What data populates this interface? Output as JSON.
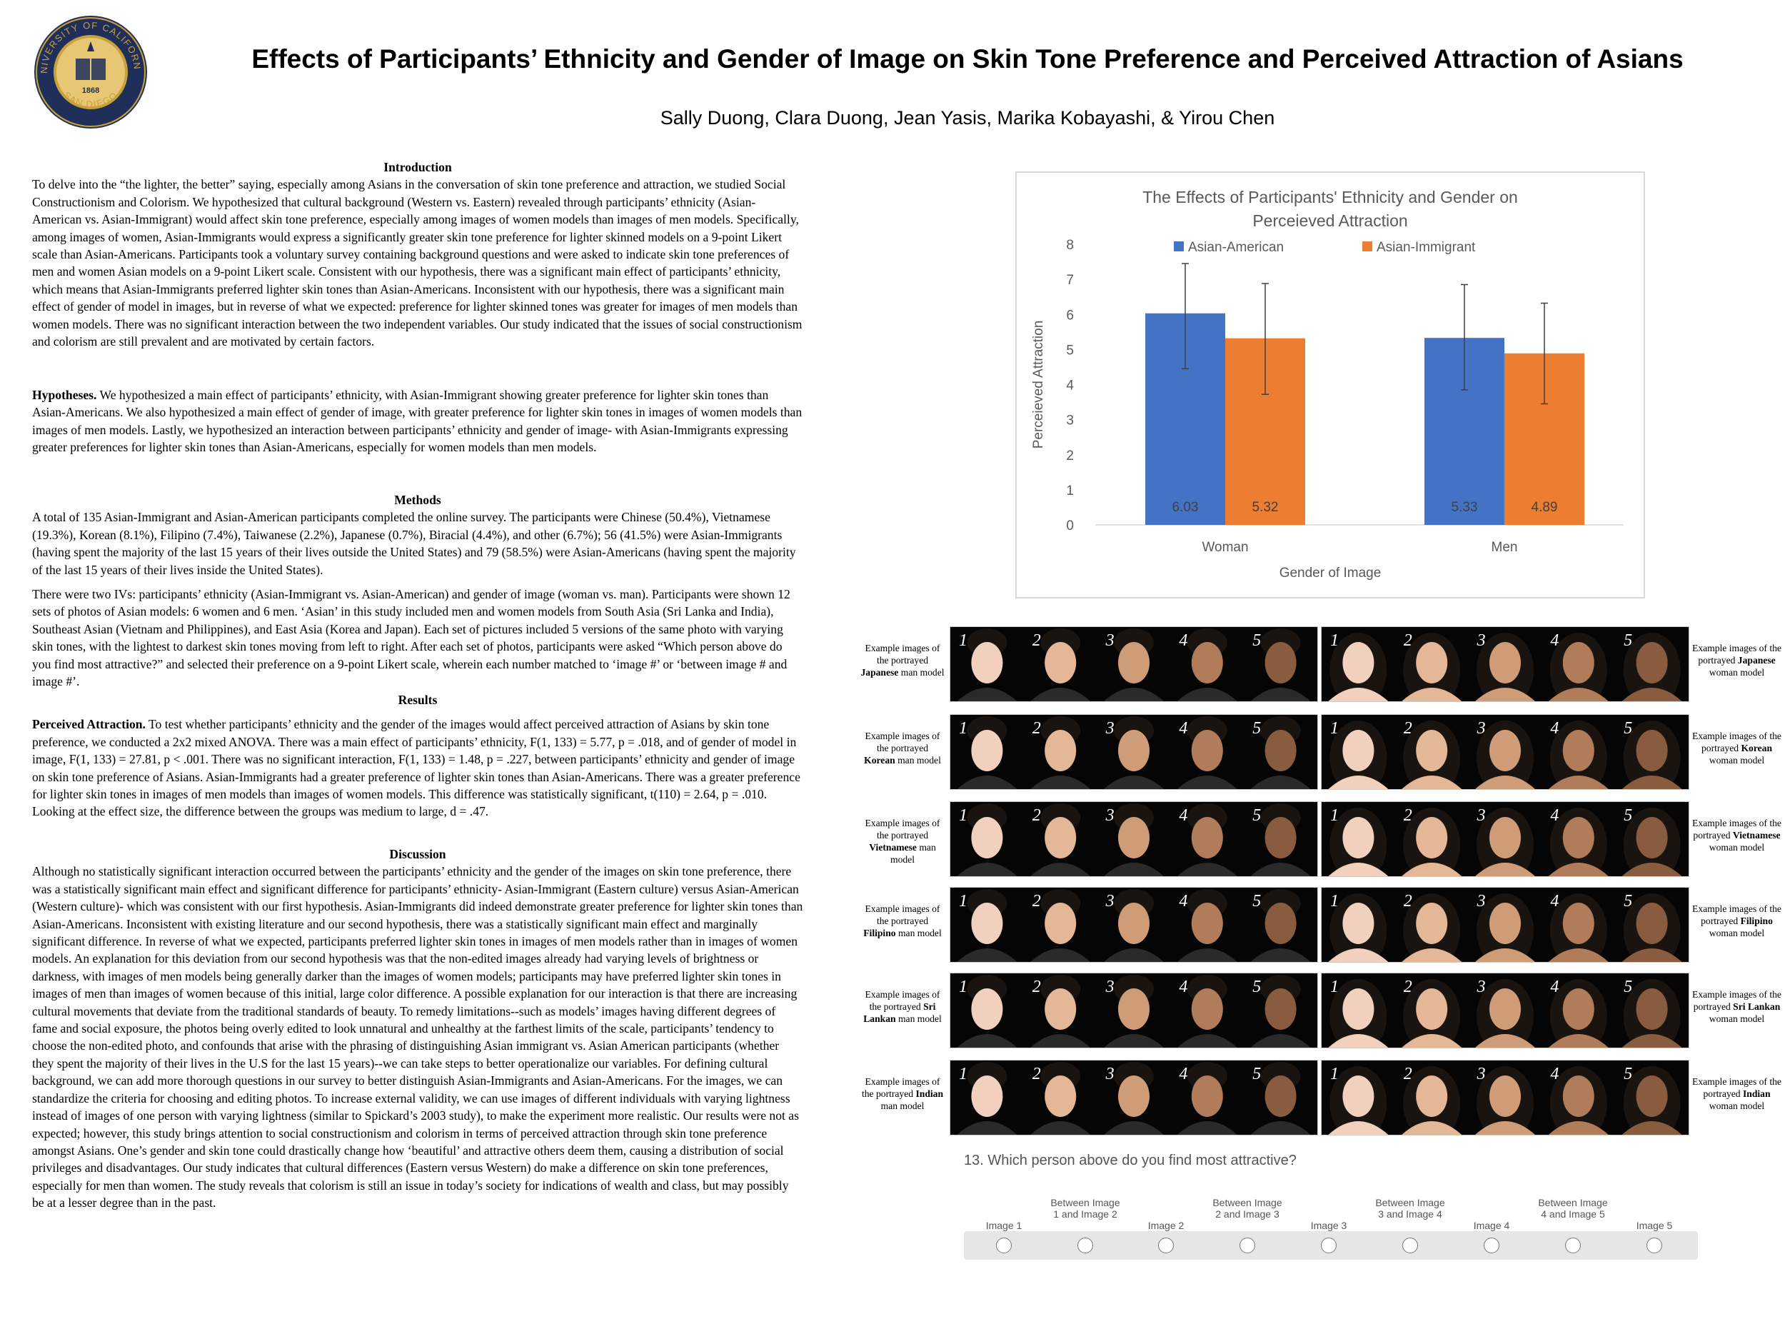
{
  "poster": {
    "title": "Effects of Participants’ Ethnicity and Gender of Image on Skin Tone Preference and Perceived Attraction of Asians",
    "authors": "Sally Duong, Clara Duong, Jean Yasis, Marika Kobayashi, & Yirou Chen",
    "seal": {
      "top_text": "UNIVERSITY OF CALIFORNIA",
      "bottom_text": "SAN DIEGO",
      "year": "1868",
      "motto": "LET THERE BE LIGHT",
      "color_navy": "#1f2f5a",
      "color_gold": "#c9a13b"
    }
  },
  "intro": {
    "heading": "Introduction",
    "body": "To delve into the “the lighter, the better” saying, especially among Asians in the conversation of skin tone preference and attraction, we studied Social Constructionism and Colorism. We hypothesized that cultural background (Western vs. Eastern) revealed through participants’ ethnicity (Asian-American vs. Asian-Immigrant) would affect skin tone preference, especially among images of women models than images of men models. Specifically, among images of women, Asian-Immigrants would express a significantly greater skin tone preference for lighter skinned models on a 9-point Likert scale than Asian-Americans. Participants took a voluntary survey containing background questions and were asked to indicate skin tone preferences of men and women Asian models on a 9-point Likert scale. Consistent with our hypothesis, there was a significant main effect of participants’ ethnicity, which means that Asian-Immigrants preferred lighter skin tones than Asian-Americans. Inconsistent with our hypothesis, there was a significant main effect of gender of model in images, but in reverse of what we expected: preference for lighter skinned tones was greater for images of men models than women models. There was no significant interaction between the two independent variables. Our study indicated that the issues of social constructionism and colorism are still prevalent and are motivated by certain factors."
  },
  "hypotheses": {
    "label": "Hypotheses.",
    "body": " We hypothesized a main effect of participants’ ethnicity, with Asian-Immigrant showing greater preference for lighter skin tones than Asian-Americans. We also hypothesized a main effect of gender of image, with greater preference for lighter skin tones in images of women models than images of men models. Lastly, we hypothesized an interaction between participants’ ethnicity and gender of image- with Asian-Immigrants expressing greater preferences for lighter skin tones than Asian-Americans, especially for women models than men models."
  },
  "methods": {
    "heading": "Methods",
    "p1": "A total of 135 Asian-Immigrant and Asian-American participants  completed the online survey. The participants were Chinese (50.4%), Vietnamese (19.3%), Korean (8.1%), Filipino (7.4%), Taiwanese (2.2%), Japanese (0.7%), Biracial (4.4%), and other (6.7%); 56 (41.5%) were Asian-Immigrants  (having spent the majority of the last 15 years of their lives outside the United States) and 79 (58.5%) were Asian-Americans (having spent the majority of the last 15 years of their lives inside the United States).",
    "p2": "There were two IVs: participants’ ethnicity (Asian-Immigrant vs. Asian-American) and gender of image (woman vs. man). Participants were shown 12 sets of photos of Asian models: 6 women and 6 men. ‘Asian’ in this study included men and women models from South Asia (Sri Lanka and India), Southeast Asian (Vietnam and Philippines), and East Asia (Korea and Japan). Each set of pictures included 5 versions of the same photo with varying skin tones, with the lightest to darkest skin tones moving from left to right. After each set of photos, participants were asked “Which person above do you find most attractive?” and selected their preference on a 9-point Likert scale, wherein each number matched to ‘image #’ or ‘between image # and image #’."
  },
  "results": {
    "heading": "Results",
    "label": "Perceived Attraction.",
    "body": " To test whether participants’ ethnicity and the gender of the images would affect perceived attraction of Asians by skin tone preference, we conducted a 2x2 mixed ANOVA. There was a main effect of participants’ ethnicity, F(1, 133) = 5.77, p = .018, and of gender of model in image, F(1, 133) = 27.81, p < .001. There was no significant interaction, F(1, 133) = 1.48, p = .227, between participants’ ethnicity and gender of image on skin tone preference of Asians. Asian-Immigrants had a greater preference of lighter skin tones than Asian-Americans. There was a greater preference for lighter skin tones in images of men models than images of women models. This difference was statistically significant, t(110) = 2.64, p = .010. Looking at the effect size, the difference between the groups was medium to large, d = .47."
  },
  "discussion": {
    "heading": "Discussion",
    "body": "Although no statistically significant interaction occurred between the participants’ ethnicity and the gender of the images on skin tone preference, there was a statistically significant main effect and significant difference for participants’ ethnicity- Asian-Immigrant (Eastern culture) versus Asian-American (Western culture)- which was consistent with our first hypothesis. Asian-Immigrants did indeed demonstrate greater preference for lighter skin tones than Asian-Americans. Inconsistent with existing literature and our second hypothesis, there was a statistically significant main effect and marginally significant difference. In reverse of what we expected, participants preferred lighter skin tones in images of men models rather than in images of women models. An explanation for this deviation from our second hypothesis was that the non-edited images already had varying levels of brightness or darkness, with images of men models being generally darker than the images of women models; participants may have preferred lighter skin tones in images of men than images of women because of this initial, large color difference. A possible explanation for our interaction is that there are increasing cultural movements that deviate from the traditional standards of beauty. To remedy limitations--such as models’ images having different degrees of fame and social exposure, the photos being overly edited to look unnatural and unhealthy at the farthest limits of the scale, participants’ tendency to choose the non-edited photo, and confounds that arise with the phrasing of distinguishing Asian immigrant vs. Asian American participants (whether they spent the majority of their lives in the U.S for the  last 15 years)--we can take steps to better operationalize our variables. For defining cultural background, we can add more thorough questions in our survey to better distinguish Asian-Immigrants and Asian-Americans. For the images, we can standardize the criteria for choosing and editing photos. To increase external validity, we can use images of different individuals with varying lightness instead of images of one person with varying lightness (similar to Spickard’s 2003 study), to make the experiment more realistic. Our results were not as expected; however, this study brings attention to social constructionism and colorism in terms of perceived attraction through skin tone preference amongst Asians. One’s gender and skin tone could drastically change how ‘beautiful’ and attractive others deem them, causing a distribution of social privileges and disadvantages. Our study indicates that cultural differences (Eastern versus Western) do make a difference on skin tone preferences, especially for men than women. The study reveals that colorism is still an issue in today’s society for indications of wealth and class, but may possibly be at a lesser degree than in the past."
  },
  "chart_data": {
    "type": "bar",
    "title": "The Effects of Participants' Ethnicity and Gender on Perceieved Attraction",
    "xlabel": "Gender of Image",
    "ylabel": "Perceieved Attraction",
    "categories": [
      "Woman",
      "Men"
    ],
    "ylim": [
      0,
      8
    ],
    "yticks": [
      0,
      1,
      2,
      3,
      4,
      5,
      6,
      7,
      8
    ],
    "grid": false,
    "legend_position": "top",
    "series": [
      {
        "name": "Asian-American",
        "values": [
          6.03,
          5.33
        ],
        "error_low": [
          4.45,
          3.85
        ],
        "error_high": [
          7.45,
          6.85
        ],
        "labels": [
          "6.03",
          "5.33"
        ],
        "color": "#4472c4"
      },
      {
        "name": "Asian-Immigrant",
        "values": [
          5.32,
          4.89
        ],
        "error_low": [
          3.72,
          3.45
        ],
        "error_high": [
          6.88,
          6.32
        ],
        "labels": [
          "5.32",
          "4.89"
        ],
        "color": "#ed7d31"
      }
    ]
  },
  "image_rows": [
    {
      "left_pre": "Example images of the portrayed ",
      "left_bold": "Japanese",
      "left_post": " man model",
      "right_pre": "Example images of the portrayed ",
      "right_bold": "Japanese",
      "right_post": " woman model"
    },
    {
      "left_pre": "Example images of the portrayed ",
      "left_bold": "Korean",
      "left_post": " man model",
      "right_pre": "Example images of the portrayed ",
      "right_bold": "Korean",
      "right_post": " woman model"
    },
    {
      "left_pre": "Example images of the portrayed ",
      "left_bold": "Vietnamese",
      "left_post": " man model",
      "right_pre": "Example images of the portrayed ",
      "right_bold": "Vietnamese",
      "right_post": " woman model"
    },
    {
      "left_pre": "Example images of the portrayed ",
      "left_bold": "Filipino",
      "left_post": " man model",
      "right_pre": "Example images of the portrayed ",
      "right_bold": "Filipino",
      "right_post": " woman model"
    },
    {
      "left_pre": "Example images of the portrayed ",
      "left_bold": "Sri Lankan",
      "left_post": " man model",
      "right_pre": "Example images of the portrayed ",
      "right_bold": "Sri Lankan",
      "right_post": " woman model"
    },
    {
      "left_pre": "Example images of the portrayed ",
      "left_bold": "Indian",
      "left_post": " man model",
      "right_pre": "Example images of the portrayed ",
      "right_bold": "Indian",
      "right_post": " woman model"
    }
  ],
  "photo_numbers": [
    "1",
    "2",
    "3",
    "4",
    "5"
  ],
  "survey": {
    "question": "13. Which person above do you find most attractive?",
    "options": [
      "Image 1",
      "Between Image 1 and Image 2",
      "Image 2",
      "Between Image 2 and Image 3",
      "Image 3",
      "Between Image 3 and Image 4",
      "Image 4",
      "Between Image 4 and Image 5",
      "Image 5"
    ]
  }
}
